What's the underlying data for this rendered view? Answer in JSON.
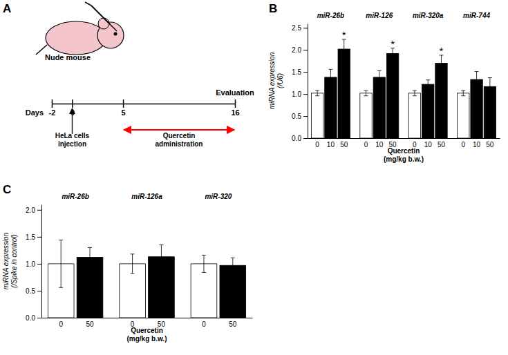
{
  "chart_data": [
    {
      "type": "timeline",
      "title": "A",
      "xlabel": "Days",
      "xlim": [
        -2,
        16
      ],
      "xticks": [
        -2,
        0,
        5,
        16
      ],
      "annotations": [
        {
          "text": "Nude mouse",
          "marker": "mouse",
          "color": "#f5c5cc"
        },
        {
          "text": "HeLa cells\ninjection",
          "x": 0,
          "marker": "arrow"
        },
        {
          "text": "Quercetin\nadministration",
          "x": [
            5,
            16
          ],
          "color": "red"
        },
        {
          "text": "Evaluation",
          "x": 16
        }
      ]
    },
    {
      "type": "bar",
      "title": "B",
      "categories": [
        "miR-26b",
        "miR-126",
        "miR-320a",
        "miR-744"
      ],
      "xlabel": "Quercetin\n(mg/kg b.w.)",
      "ylabel": "miRNA expression\n(/U6)",
      "series": [
        {
          "name": "0",
          "color": "white",
          "values": [
            1.02,
            1.02,
            1.02,
            1.02
          ],
          "errors": [
            0.06,
            0.06,
            0.06,
            0.06
          ]
        },
        {
          "name": "10",
          "color": "black",
          "values": [
            1.38,
            1.38,
            1.22,
            1.33
          ],
          "errors": [
            0.18,
            0.15,
            0.1,
            0.18
          ]
        },
        {
          "name": "50",
          "color": "black",
          "values": [
            2.02,
            1.92,
            1.7,
            1.17
          ],
          "errors": [
            0.22,
            0.12,
            0.18,
            0.2
          ]
        }
      ],
      "ylim": [
        0,
        2.6
      ],
      "yticks": [
        {
          "value": 0,
          "label": "0.0"
        },
        0.5,
        {
          "value": 1,
          "label": "1.0"
        },
        1.5,
        {
          "value": 2,
          "label": "2.0"
        },
        2.5
      ],
      "annotations": [
        {
          "text": "*",
          "series": 2,
          "category": 0
        },
        {
          "text": "*",
          "series": 2,
          "category": 1
        },
        {
          "text": "*",
          "series": 2,
          "category": 2
        }
      ]
    },
    {
      "type": "bar",
      "title": "C",
      "categories": [
        "miR-26b",
        "miR-126a",
        "miR-320"
      ],
      "xlabel": "Quercetin\n(mg/kg b.w.)",
      "ylabel": "miRNA expression\n(/Spike in control)",
      "series": [
        {
          "name": "0",
          "color": "white",
          "values": [
            1,
            1,
            1
          ],
          "errors": [
            0.44,
            0.18,
            0.16
          ]
        },
        {
          "name": "50",
          "color": "black",
          "values": [
            1.12,
            1.13,
            0.97
          ],
          "errors": [
            0.18,
            0.22,
            0.14
          ]
        }
      ],
      "ylim": [
        0,
        2.1
      ],
      "yticks": [
        {
          "value": 0,
          "label": "0.0"
        },
        0.5,
        {
          "value": 1,
          "label": "1.0"
        },
        1.5,
        {
          "value": 2,
          "label": "2.0"
        }
      ]
    }
  ]
}
